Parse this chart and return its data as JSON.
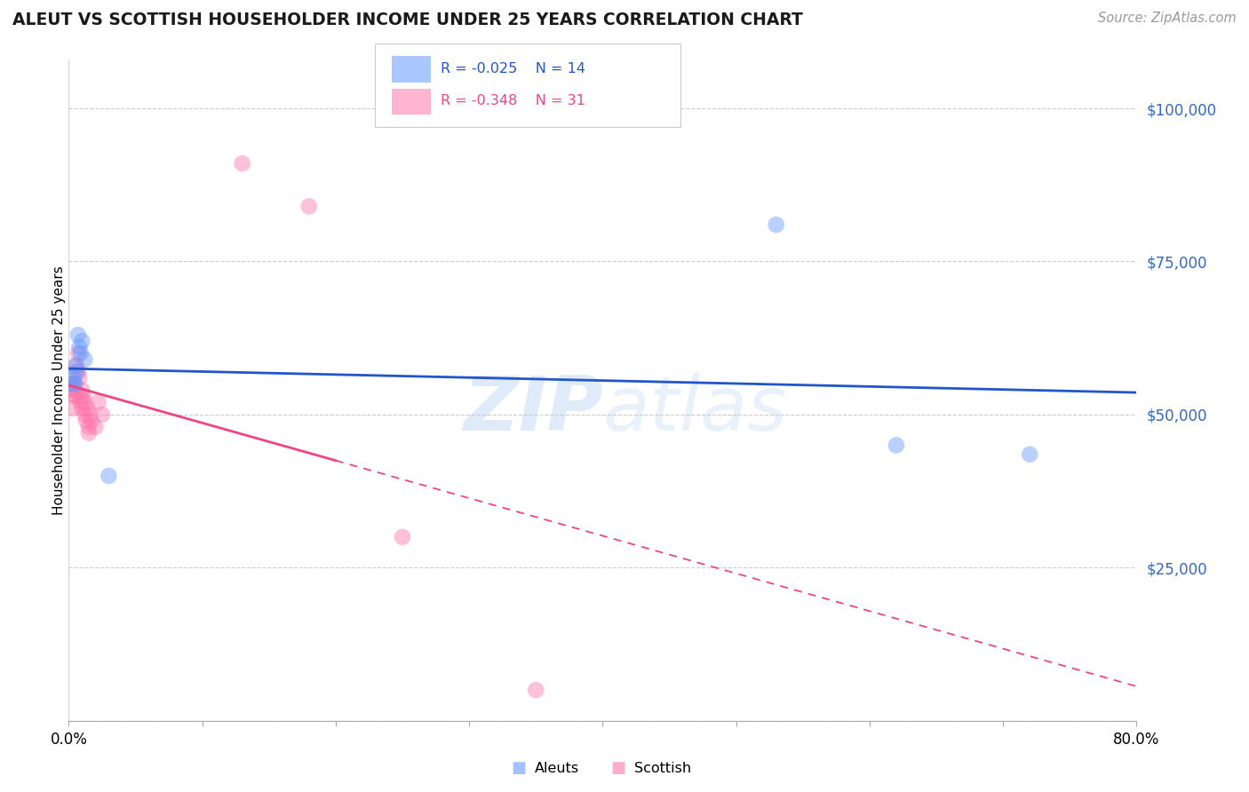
{
  "title": "ALEUT VS SCOTTISH HOUSEHOLDER INCOME UNDER 25 YEARS CORRELATION CHART",
  "source": "Source: ZipAtlas.com",
  "ylabel": "Householder Income Under 25 years",
  "ytick_values": [
    0,
    25000,
    50000,
    75000,
    100000
  ],
  "ylim": [
    0,
    108000
  ],
  "xlim": [
    0.0,
    0.8
  ],
  "watermark": "ZIPatlas",
  "legend_aleut_R": -0.025,
  "legend_aleut_N": 14,
  "legend_scottish_R": -0.348,
  "legend_scottish_N": 31,
  "aleut_color": "#6699FF",
  "aleut_line_color": "#2255CC",
  "scottish_color": "#FF77AA",
  "scottish_line_color": "#EE4488",
  "aleut_points_x": [
    0.003,
    0.004,
    0.005,
    0.005,
    0.006,
    0.007,
    0.008,
    0.009,
    0.01,
    0.012,
    0.03,
    0.53,
    0.62,
    0.72
  ],
  "aleut_points_y": [
    55000,
    56000,
    58000,
    55000,
    57000,
    63000,
    61000,
    60000,
    62000,
    59000,
    40000,
    81000,
    45000,
    43500
  ],
  "scottish_points_x": [
    0.002,
    0.003,
    0.003,
    0.004,
    0.004,
    0.005,
    0.005,
    0.006,
    0.007,
    0.007,
    0.008,
    0.009,
    0.009,
    0.01,
    0.01,
    0.011,
    0.012,
    0.012,
    0.013,
    0.014,
    0.015,
    0.015,
    0.016,
    0.017,
    0.02,
    0.022,
    0.025,
    0.13,
    0.18,
    0.25,
    0.35
  ],
  "scottish_points_y": [
    54000,
    55000,
    51000,
    54000,
    55000,
    53000,
    53000,
    58000,
    60000,
    57000,
    56000,
    53000,
    52000,
    54000,
    51000,
    53000,
    52000,
    50000,
    49000,
    51000,
    48000,
    47000,
    50000,
    49000,
    48000,
    52000,
    50000,
    91000,
    84000,
    30000,
    5000
  ],
  "grid_color": "#cccccc",
  "bg_color": "#ffffff",
  "axis_label_color": "#3366CC"
}
